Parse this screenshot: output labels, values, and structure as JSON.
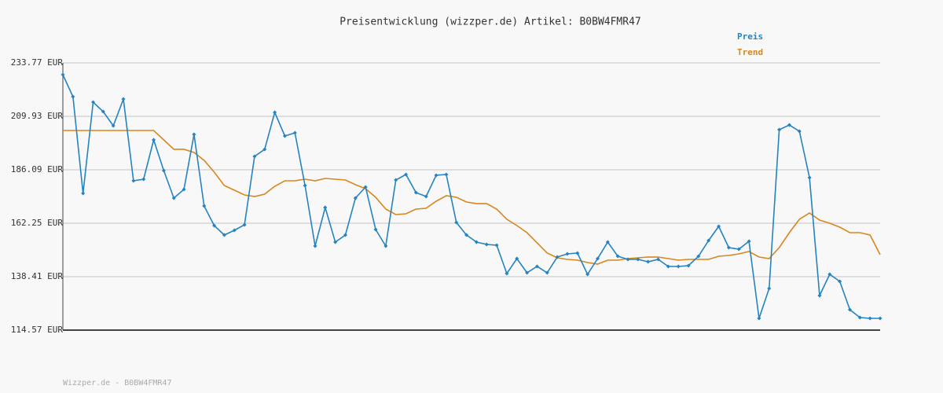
{
  "chart_data": {
    "type": "line",
    "title": "Preisentwicklung (wizzper.de) Artikel: B0BW4FMR47",
    "footer": "Wizzper.de - B0BW4FMR47",
    "legend": "top-right",
    "grid": true,
    "ylim": [
      114.57,
      233.77
    ],
    "yticks": [
      {
        "value": 114.57,
        "label": "114.57 EUR"
      },
      {
        "value": 138.41,
        "label": "138.41 EUR"
      },
      {
        "value": 162.25,
        "label": "162.25 EUR"
      },
      {
        "value": 186.09,
        "label": "186.09 EUR"
      },
      {
        "value": 209.93,
        "label": "209.93 EUR"
      },
      {
        "value": 233.77,
        "label": "233.77 EUR"
      }
    ],
    "series": [
      {
        "name": "Preis",
        "color": "#2583c0",
        "markers": true,
        "values": [
          228.51,
          218.69,
          175.57,
          216.24,
          212.03,
          205.72,
          217.64,
          181.18,
          181.88,
          199.41,
          185.74,
          173.47,
          177.33,
          201.87,
          169.96,
          161.2,
          156.99,
          159.09,
          161.55,
          192.05,
          195.21,
          211.68,
          201.17,
          202.57,
          179.08,
          152.08,
          169.26,
          153.84,
          156.99,
          173.47,
          178.38,
          159.45,
          152.08,
          181.53,
          183.99,
          175.92,
          174.17,
          183.64,
          183.99,
          162.6,
          156.99,
          153.84,
          152.78,
          152.43,
          139.81,
          146.47,
          140.16,
          142.97,
          140.16,
          147.17,
          148.58,
          148.93,
          139.46,
          146.47,
          153.84,
          147.53,
          146.12,
          146.12,
          145.07,
          146.12,
          142.97,
          142.97,
          143.32,
          147.53,
          154.54,
          160.85,
          151.38,
          150.68,
          154.19,
          119.83,
          133.15,
          203.97,
          206.07,
          203.27,
          182.58,
          130.0,
          139.46,
          136.31,
          123.69,
          120.18,
          119.83,
          119.83
        ]
      },
      {
        "name": "Trend",
        "color": "#d9861c",
        "markers": false,
        "values": [
          203.62,
          203.62,
          203.62,
          203.62,
          203.62,
          203.62,
          203.62,
          203.62,
          203.62,
          203.62,
          199.41,
          195.21,
          195.21,
          193.8,
          190.3,
          185.04,
          179.08,
          176.97,
          174.87,
          174.17,
          175.22,
          178.73,
          181.18,
          181.18,
          181.88,
          181.18,
          182.23,
          181.88,
          181.53,
          179.43,
          177.68,
          173.82,
          168.56,
          166.11,
          166.46,
          168.56,
          168.91,
          172.07,
          174.52,
          173.82,
          171.72,
          171.01,
          171.01,
          168.56,
          164.0,
          161.2,
          158.04,
          153.49,
          148.93,
          146.82,
          146.12,
          145.77,
          144.72,
          144.02,
          145.77,
          145.77,
          146.47,
          146.82,
          147.17,
          147.17,
          146.47,
          145.77,
          146.12,
          146.12,
          146.12,
          147.53,
          147.87,
          148.58,
          149.63,
          147.17,
          146.47,
          151.38,
          158.04,
          164.0,
          166.81,
          163.65,
          162.25,
          160.5,
          158.04,
          158.04,
          156.99,
          148.23
        ]
      }
    ]
  }
}
